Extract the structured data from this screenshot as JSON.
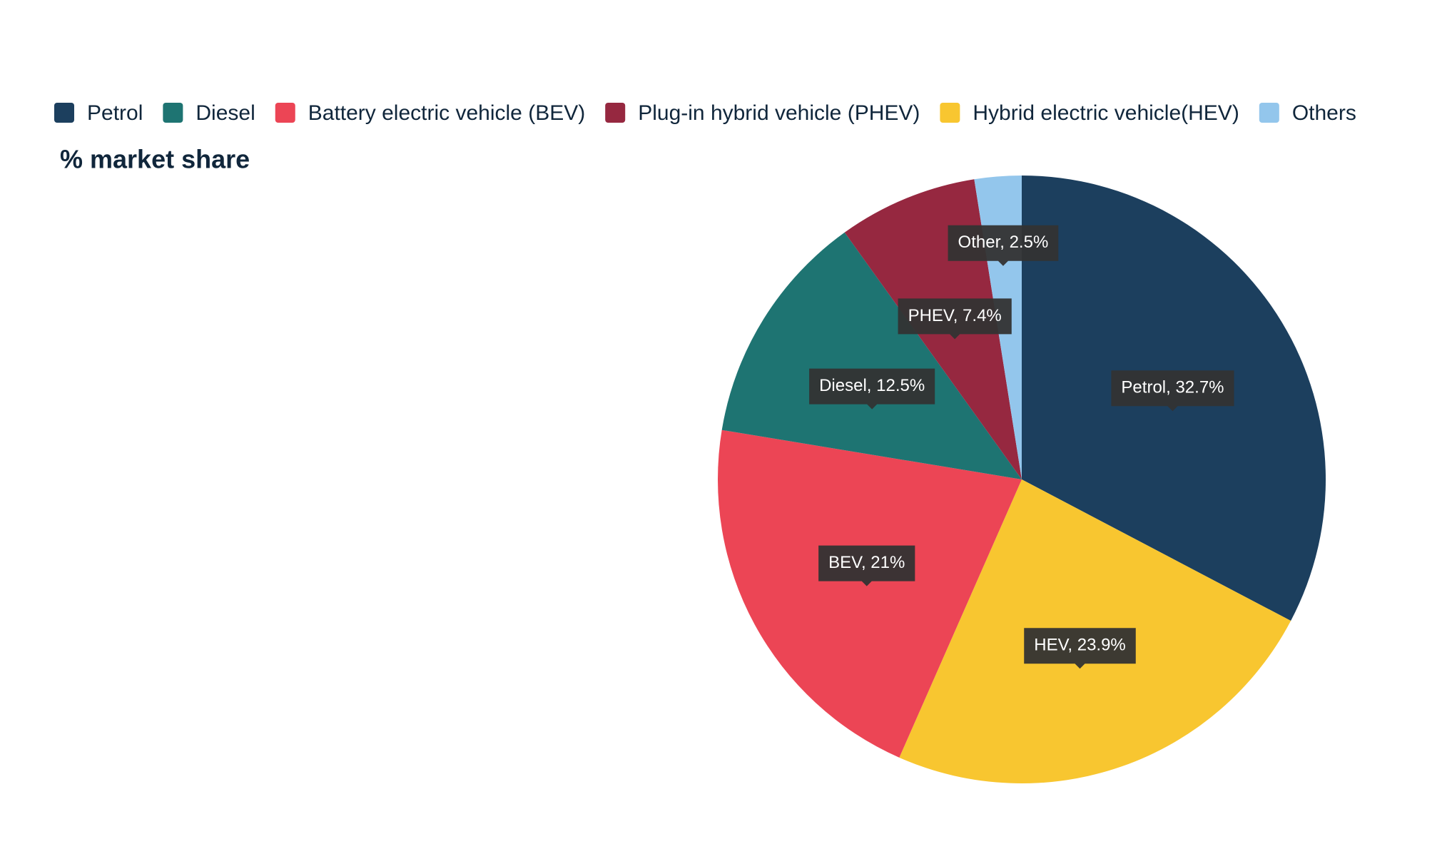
{
  "chart_data": {
    "type": "pie",
    "title": "% market share",
    "legend": [
      {
        "name": "Petrol",
        "color": "#1c3f5e"
      },
      {
        "name": "Diesel",
        "color": "#1e7472"
      },
      {
        "name": "Battery electric vehicle (BEV)",
        "color": "#ec4555"
      },
      {
        "name": "Plug-in hybrid vehicle (PHEV)",
        "color": "#962840"
      },
      {
        "name": "Hybrid electric vehicle(HEV)",
        "color": "#f8c630"
      },
      {
        "name": "Others",
        "color": "#93c6ec"
      }
    ],
    "values": [
      32.7,
      23.9,
      21,
      12.5,
      7.4,
      2.5
    ],
    "value_labels": [
      "Petrol, 32.7%",
      "HEV, 23.9%",
      "BEV, 21%",
      "Diesel, 12.5%",
      "PHEV, 7.4%",
      "Other, 2.5%"
    ],
    "colors": [
      "#1c3f5e",
      "#f8c630",
      "#ec4555",
      "#1e7472",
      "#962840",
      "#93c6ec"
    ]
  }
}
